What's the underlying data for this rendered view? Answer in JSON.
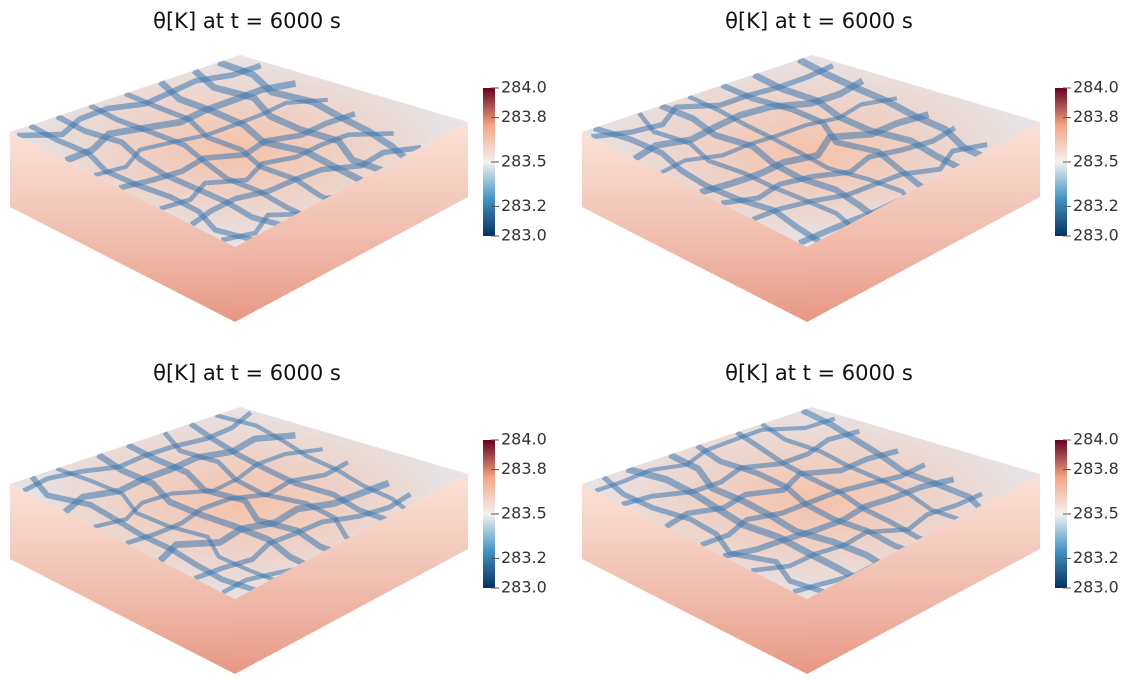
{
  "panels": [
    {
      "title": "θ[K] at t = 6000 s",
      "colorbar": {
        "lim": [
          283.0,
          284.0
        ],
        "ticks": [
          {
            "value": 284.0,
            "label": "284.0"
          },
          {
            "value": 283.8,
            "label": "283.8"
          },
          {
            "value": 283.5,
            "label": "283.5"
          },
          {
            "value": 283.2,
            "label": "283.2"
          },
          {
            "value": 283.0,
            "label": "283.0"
          }
        ]
      }
    },
    {
      "title": "θ[K] at t = 6000 s",
      "colorbar": {
        "lim": [
          283.0,
          284.0
        ],
        "ticks": [
          {
            "value": 284.0,
            "label": "284.0"
          },
          {
            "value": 283.8,
            "label": "283.8"
          },
          {
            "value": 283.5,
            "label": "283.5"
          },
          {
            "value": 283.2,
            "label": "283.2"
          },
          {
            "value": 283.0,
            "label": "283.0"
          }
        ]
      }
    },
    {
      "title": "θ[K] at t = 6000 s",
      "colorbar": {
        "lim": [
          283.0,
          284.0
        ],
        "ticks": [
          {
            "value": 284.0,
            "label": "284.0"
          },
          {
            "value": 283.8,
            "label": "283.8"
          },
          {
            "value": 283.5,
            "label": "283.5"
          },
          {
            "value": 283.2,
            "label": "283.2"
          },
          {
            "value": 283.0,
            "label": "283.0"
          }
        ]
      }
    },
    {
      "title": "θ[K] at t = 6000 s",
      "colorbar": {
        "lim": [
          283.0,
          284.0
        ],
        "ticks": [
          {
            "value": 284.0,
            "label": "284.0"
          },
          {
            "value": 283.8,
            "label": "283.8"
          },
          {
            "value": 283.5,
            "label": "283.5"
          },
          {
            "value": 283.2,
            "label": "283.2"
          },
          {
            "value": 283.0,
            "label": "283.0"
          }
        ]
      }
    }
  ]
}
